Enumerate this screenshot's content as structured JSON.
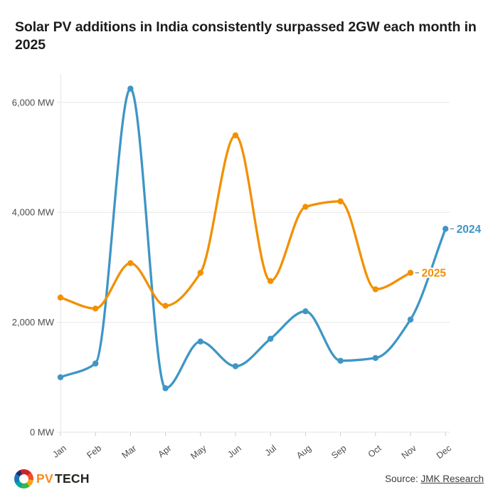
{
  "title": "Solar PV additions in India consistently surpassed 2GW each month in 2025",
  "chart_data": {
    "type": "line",
    "title": "Solar PV additions in India consistently surpassed 2GW each month in 2025",
    "x_categories": [
      "Jan",
      "Feb",
      "Mar",
      "Apr",
      "May",
      "Jun",
      "Jul",
      "Aug",
      "Sep",
      "Oct",
      "Nov",
      "Dec"
    ],
    "y_unit": "MW",
    "y_ticks": [
      0,
      2000,
      4000,
      6000
    ],
    "y_tick_labels": [
      "0 MW",
      "2,000 MW",
      "4,000 MW",
      "6,000 MW"
    ],
    "ylim": [
      0,
      6500
    ],
    "grid": "horizontal",
    "legend_position": "line-end-labels",
    "series": [
      {
        "name": "2024",
        "color": "#3e96c6",
        "values": [
          1000,
          1250,
          6250,
          800,
          1650,
          1200,
          1700,
          2200,
          1300,
          1350,
          2050,
          3700
        ]
      },
      {
        "name": "2025",
        "color": "#f29000",
        "values": [
          2450,
          2250,
          3075,
          2300,
          2900,
          5400,
          2750,
          4100,
          4200,
          2600,
          2900,
          null
        ]
      }
    ],
    "colors": {
      "grid": "#e6e6e6",
      "tick": "#cccccc",
      "axis_text": "#4c4c4c",
      "label_dash": "#9a9a9a"
    }
  },
  "footer": {
    "logo_pv": "PV",
    "logo_tech": "TECH",
    "source_label": "Source:",
    "source_link": "JMK Research"
  }
}
